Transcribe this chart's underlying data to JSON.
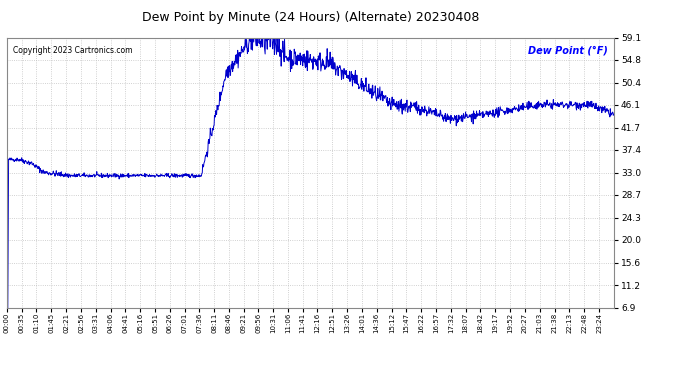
{
  "title": "Dew Point by Minute (24 Hours) (Alternate) 20230408",
  "copyright": "Copyright 2023 Cartronics.com",
  "legend_label": "Dew Point (°F)",
  "background_color": "#ffffff",
  "plot_bg_color": "#ffffff",
  "line_color": "#0000cc",
  "grid_color": "#bbbbbb",
  "title_color": "#000000",
  "copyright_color": "#000000",
  "legend_color": "#0000ff",
  "yticks": [
    6.9,
    11.2,
    15.6,
    20.0,
    24.3,
    28.7,
    33.0,
    37.4,
    41.7,
    46.1,
    50.4,
    54.8,
    59.1
  ],
  "ymin": 6.9,
  "ymax": 59.1,
  "xtick_labels": [
    "00:00",
    "00:35",
    "01:10",
    "01:45",
    "02:21",
    "02:56",
    "03:31",
    "04:06",
    "04:41",
    "05:16",
    "05:51",
    "06:26",
    "07:01",
    "07:36",
    "08:11",
    "08:46",
    "09:21",
    "09:56",
    "10:31",
    "11:06",
    "11:41",
    "12:16",
    "12:51",
    "13:26",
    "14:01",
    "14:36",
    "15:12",
    "15:47",
    "16:22",
    "16:57",
    "17:32",
    "18:07",
    "18:42",
    "19:17",
    "19:52",
    "20:27",
    "21:03",
    "21:38",
    "22:13",
    "22:48",
    "23:24"
  ]
}
